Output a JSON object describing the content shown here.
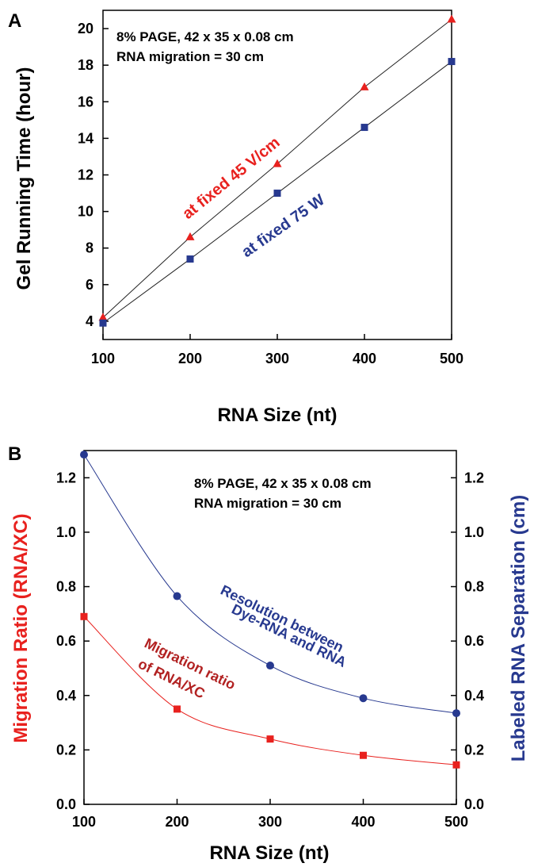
{
  "figure": {
    "colors": {
      "red": "#e8211e",
      "blue": "#27398f",
      "dark_red": "#b22222",
      "line": "#222222"
    },
    "panel_a": {
      "panel_letter": "A",
      "note_line1": "8% PAGE, 42 x 35 x 0.08 cm",
      "note_line2": "RNA migration = 30 cm",
      "anno_red": "at fixed 45 V/cm",
      "anno_blue": "at fixed 75 W"
    },
    "panel_b": {
      "panel_letter": "B",
      "note_line1": "8% PAGE, 42 x 35 x 0.08 cm",
      "note_line2": "RNA migration = 30 cm",
      "anno_blue_line1": "Resolution between",
      "anno_blue_line2": "Dye-RNA and RNA",
      "anno_red_line1": "Migration ratio",
      "anno_red_line2": "of RNA/XC"
    }
  },
  "chart_data": [
    {
      "type": "line",
      "title": "",
      "xlabel": "RNA Size (nt)",
      "ylabel": "Gel Running Time (hour)",
      "xlim": [
        100,
        500
      ],
      "ylim": [
        3,
        21
      ],
      "x": [
        100,
        200,
        300,
        400,
        500
      ],
      "xticks": [
        "100",
        "200",
        "300",
        "400",
        "500"
      ],
      "yticks": [
        "4",
        "6",
        "8",
        "10",
        "12",
        "14",
        "16",
        "18",
        "20"
      ],
      "grid": false,
      "series": [
        {
          "name": "at fixed 45 V/cm",
          "marker": "triangle",
          "color": "#e8211e",
          "values": [
            4.2,
            8.6,
            12.6,
            16.8,
            20.5
          ]
        },
        {
          "name": "at fixed 75 W",
          "marker": "square",
          "color": "#27398f",
          "values": [
            3.9,
            7.4,
            11.0,
            14.6,
            18.2
          ]
        }
      ]
    },
    {
      "type": "line",
      "title": "",
      "xlabel": "RNA Size (nt)",
      "ylabel": "Migration Ratio (RNA/XC)",
      "ylabel_right": "Labeled RNA Separation (cm)",
      "xlim": [
        100,
        500
      ],
      "ylim": [
        0,
        1.3
      ],
      "ylim_right": [
        0,
        1.3
      ],
      "x": [
        100,
        200,
        300,
        400,
        500
      ],
      "xticks": [
        "100",
        "200",
        "300",
        "400",
        "500"
      ],
      "yticks": [
        "0.0",
        "0.2",
        "0.4",
        "0.6",
        "0.8",
        "1.0",
        "1.2"
      ],
      "yticks_right": [
        "0.0",
        "0.2",
        "0.4",
        "0.6",
        "0.8",
        "1.0",
        "1.2"
      ],
      "grid": false,
      "series": [
        {
          "name": "Migration ratio of RNA/XC",
          "marker": "square",
          "color": "#e8211e",
          "axis": "left",
          "values": [
            0.69,
            0.35,
            0.24,
            0.18,
            0.145
          ]
        },
        {
          "name": "Resolution between Dye-RNA and RNA",
          "marker": "circle",
          "color": "#27398f",
          "axis": "right",
          "values": [
            1.285,
            0.765,
            0.51,
            0.39,
            0.335
          ]
        }
      ]
    }
  ]
}
